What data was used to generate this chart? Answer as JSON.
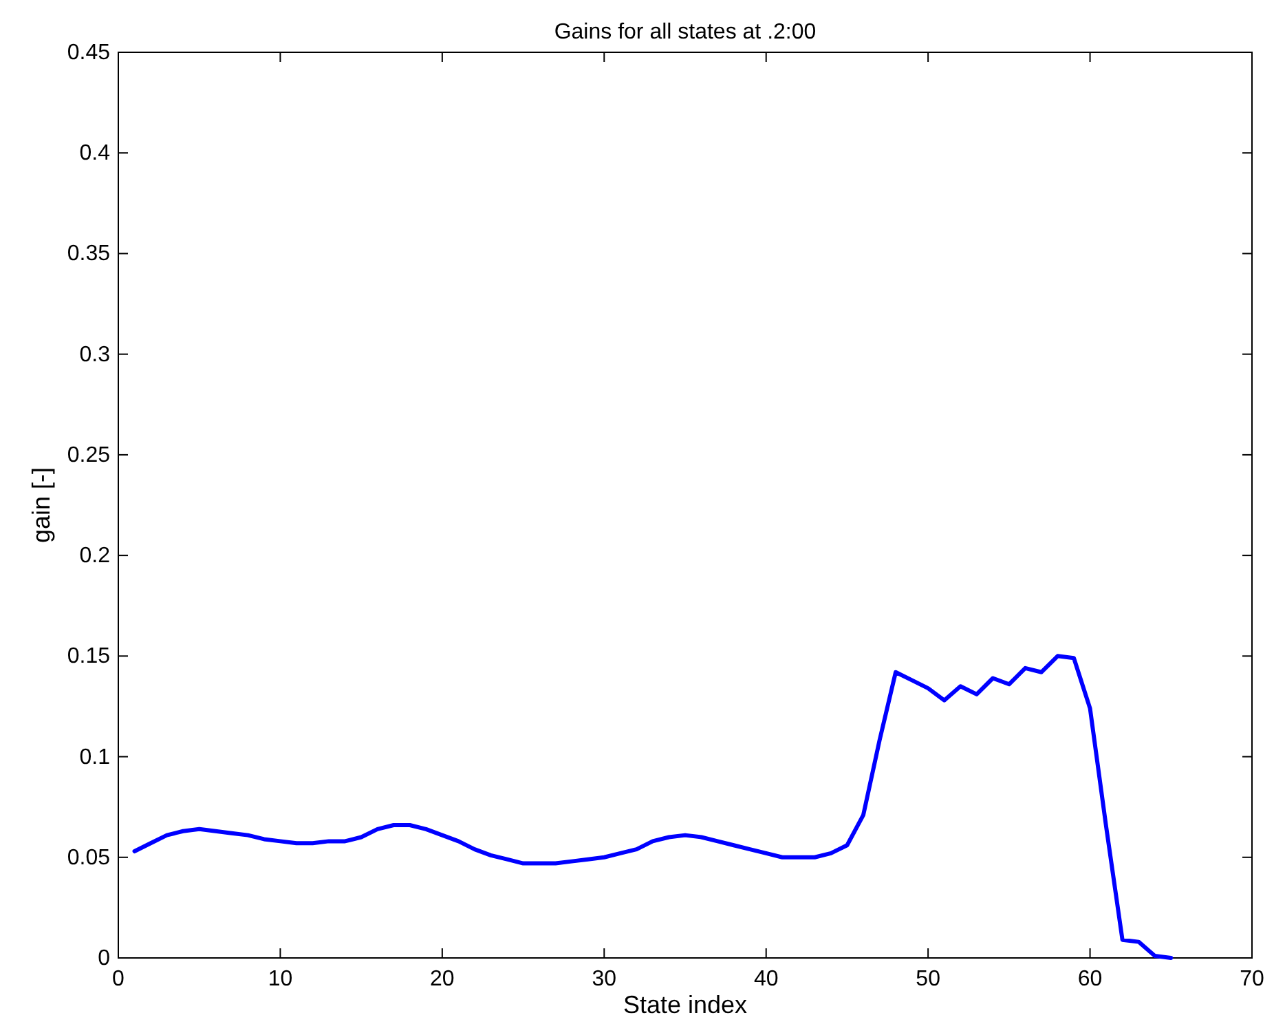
{
  "chart_data": {
    "type": "line",
    "title": "Gains for all states at .2:00",
    "xlabel": "State index",
    "ylabel": "gain [-]",
    "x": [
      1,
      2,
      3,
      4,
      5,
      6,
      7,
      8,
      9,
      10,
      11,
      12,
      13,
      14,
      15,
      16,
      17,
      18,
      19,
      20,
      21,
      22,
      23,
      24,
      25,
      26,
      27,
      28,
      29,
      30,
      31,
      32,
      33,
      34,
      35,
      36,
      37,
      38,
      39,
      40,
      41,
      42,
      43,
      44,
      45,
      46,
      47,
      48,
      49,
      50,
      51,
      52,
      53,
      54,
      55,
      56,
      57,
      58,
      59,
      60,
      61,
      62,
      63,
      64,
      65
    ],
    "series": [
      {
        "color": "#0000ff",
        "values": [
          0.053,
          0.057,
          0.061,
          0.063,
          0.064,
          0.063,
          0.062,
          0.061,
          0.059,
          0.058,
          0.057,
          0.057,
          0.058,
          0.058,
          0.06,
          0.064,
          0.066,
          0.066,
          0.064,
          0.061,
          0.058,
          0.054,
          0.051,
          0.049,
          0.047,
          0.047,
          0.047,
          0.048,
          0.049,
          0.05,
          0.052,
          0.054,
          0.058,
          0.06,
          0.061,
          0.06,
          0.058,
          0.056,
          0.054,
          0.052,
          0.05,
          0.05,
          0.05,
          0.052,
          0.056,
          0.071,
          0.108,
          0.142,
          0.138,
          0.134,
          0.128,
          0.135,
          0.131,
          0.139,
          0.136,
          0.144,
          0.142,
          0.15,
          0.149,
          0.124,
          0.065,
          0.009,
          0.008,
          0.001,
          0.0
        ]
      }
    ],
    "xlim": [
      0,
      70
    ],
    "xticks": [
      0,
      10,
      20,
      30,
      40,
      50,
      60,
      70
    ],
    "ylim": [
      0,
      0.45
    ],
    "yticks": [
      0,
      0.05,
      0.1,
      0.15,
      0.2,
      0.25,
      0.3,
      0.35,
      0.4,
      0.45
    ],
    "grid": false,
    "marker": "none",
    "line_style": "solid"
  }
}
